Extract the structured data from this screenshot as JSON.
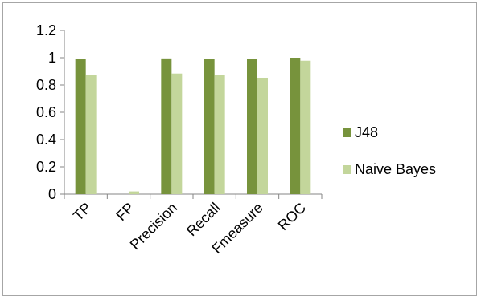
{
  "chart_data": {
    "type": "bar",
    "categories": [
      "TP",
      "FP",
      "Precision",
      "Recall",
      "Fmeasure",
      "ROC"
    ],
    "series": [
      {
        "name": "J48",
        "values": [
          0.99,
          0.0,
          0.995,
          0.99,
          0.99,
          1.0
        ],
        "color": "#77933c"
      },
      {
        "name": "Naive Bayes",
        "values": [
          0.873,
          0.02,
          0.884,
          0.873,
          0.853,
          0.978
        ],
        "color": "#c3d69b"
      }
    ],
    "title": "",
    "xlabel": "",
    "ylabel": "",
    "ylim": [
      0,
      1.2
    ],
    "yticks": [
      "0",
      "0.2",
      "0.4",
      "0.6",
      "0.8",
      "1",
      "1.2"
    ],
    "grid": false,
    "legend": "right"
  }
}
